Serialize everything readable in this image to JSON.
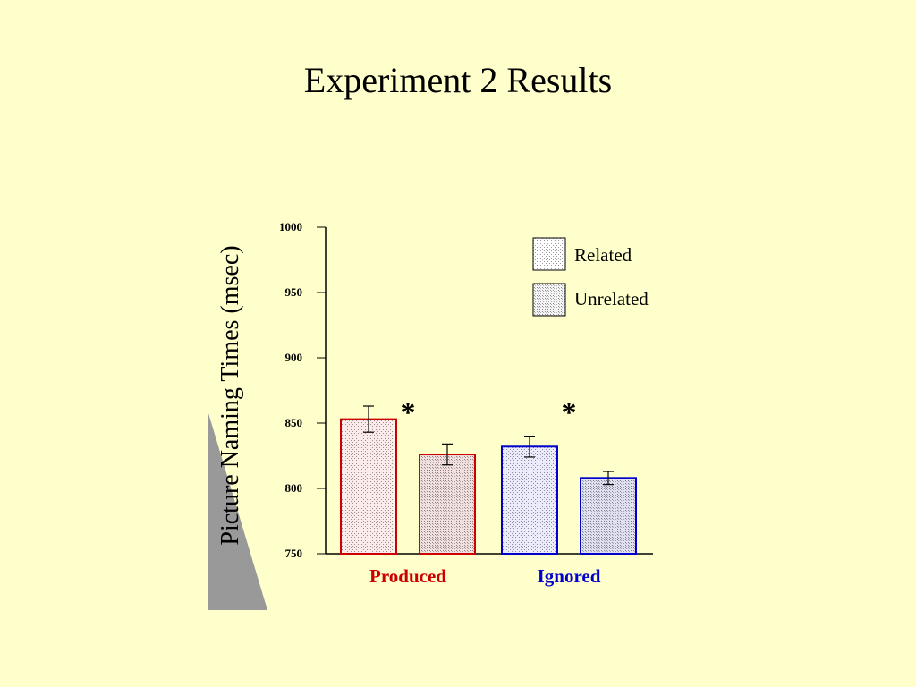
{
  "slide": {
    "title": "Experiment 2 Results"
  },
  "colors": {
    "background": "#ffffcc",
    "produced": "#cc0000",
    "ignored": "#0000cc"
  },
  "chart_data": {
    "type": "bar",
    "title": "",
    "xlabel": "",
    "ylabel": "Picture Naming Times (msec)",
    "ylim": [
      750,
      1000
    ],
    "yticks": [
      750,
      800,
      850,
      900,
      950,
      1000
    ],
    "groups": [
      {
        "label": "Produced",
        "color": "#cc0000",
        "significance": "*"
      },
      {
        "label": "Ignored",
        "color": "#0000cc",
        "significance": "*"
      }
    ],
    "series": [
      {
        "name": "Related",
        "values": [
          853,
          832
        ],
        "errors": [
          10,
          8
        ]
      },
      {
        "name": "Unrelated",
        "values": [
          826,
          808
        ],
        "errors": [
          8,
          5
        ]
      }
    ],
    "legend": {
      "position": "top-right",
      "entries": [
        "Related",
        "Unrelated"
      ]
    },
    "grid": false
  }
}
